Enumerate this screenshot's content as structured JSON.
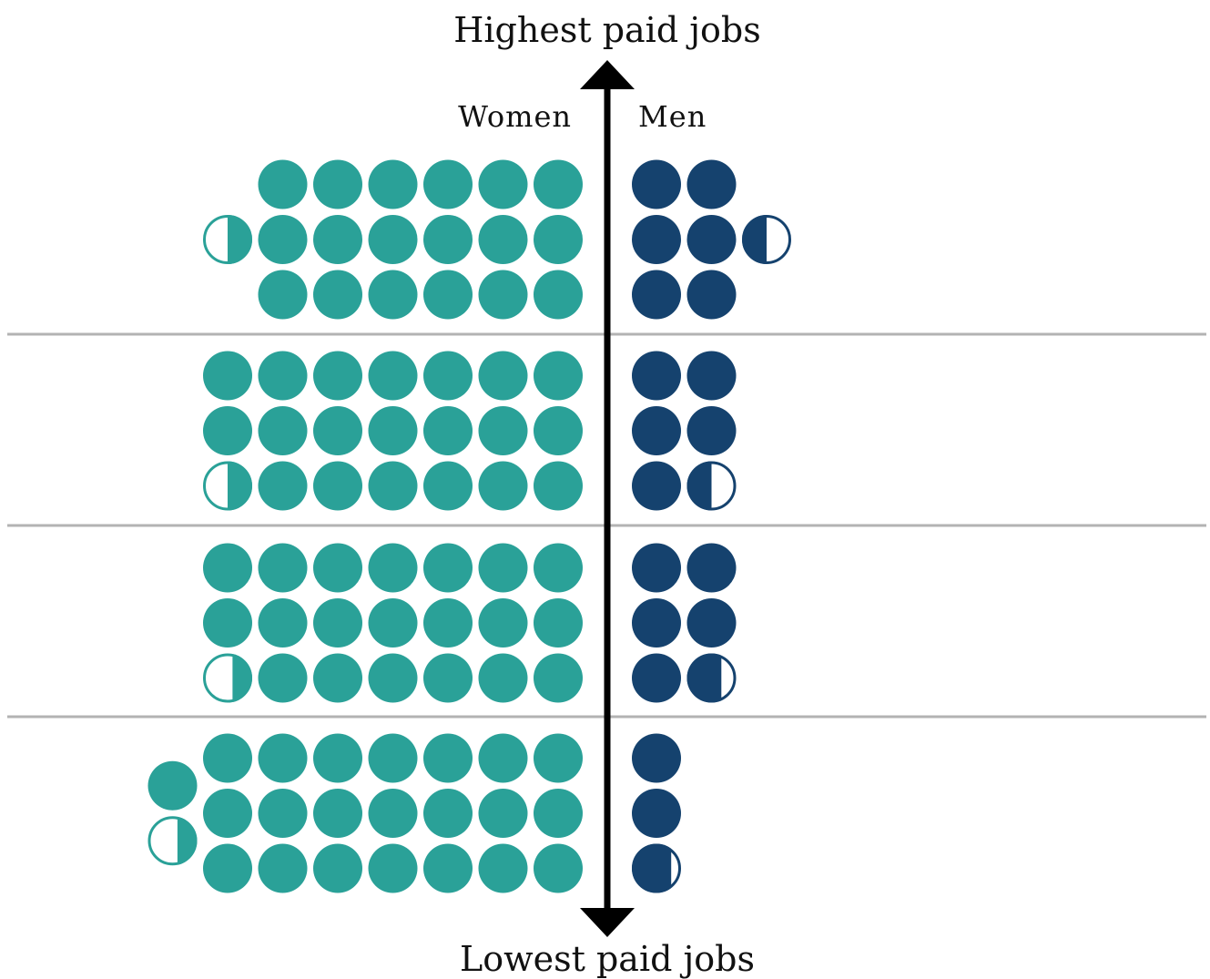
{
  "chart_data": {
    "type": "pictogram",
    "top_label": "Highest paid jobs",
    "bottom_label": "Lowest paid jobs",
    "legend": {
      "women": "Women",
      "men": "Men"
    },
    "colors": {
      "women": "#2aa198",
      "men": "#15426e",
      "divider": "#b3b3b3",
      "axis": "#000000",
      "background": "#ffffff"
    },
    "unit_note": "Each filled circle represents one unit; partially filled circles represent fractional units.",
    "groups": [
      {
        "position": "highest",
        "women": 18.5,
        "men": 6.5
      },
      {
        "position": "upper-middle",
        "women": 20.5,
        "men": 5.5
      },
      {
        "position": "lower-middle",
        "women": 20.4,
        "men": 5.7
      },
      {
        "position": "lowest",
        "women": 22.4,
        "men": 2.8
      }
    ]
  }
}
